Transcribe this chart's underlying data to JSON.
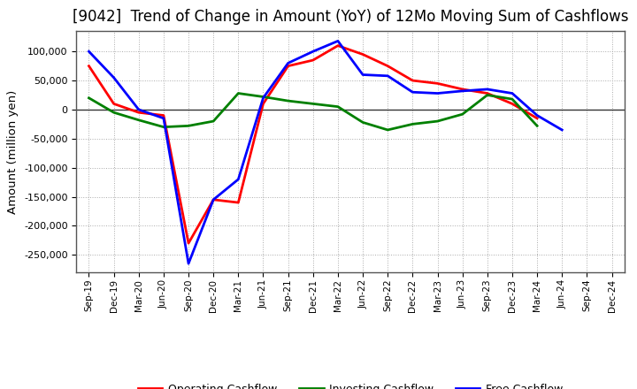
{
  "title": "[9042]  Trend of Change in Amount (YoY) of 12Mo Moving Sum of Cashflows",
  "ylabel": "Amount (million yen)",
  "xlabels": [
    "Sep-19",
    "Dec-19",
    "Mar-20",
    "Jun-20",
    "Sep-20",
    "Dec-20",
    "Mar-21",
    "Jun-21",
    "Sep-21",
    "Dec-21",
    "Mar-22",
    "Jun-22",
    "Sep-22",
    "Dec-22",
    "Mar-23",
    "Jun-23",
    "Sep-23",
    "Dec-23",
    "Mar-24",
    "Jun-24",
    "Sep-24",
    "Dec-24"
  ],
  "operating": [
    75000,
    10000,
    -5000,
    -10000,
    -230000,
    -155000,
    -160000,
    10000,
    75000,
    85000,
    110000,
    95000,
    75000,
    50000,
    45000,
    35000,
    28000,
    10000,
    -15000,
    null,
    null,
    null
  ],
  "investing": [
    20000,
    -5000,
    -18000,
    -30000,
    -28000,
    -20000,
    28000,
    22000,
    15000,
    10000,
    5000,
    -22000,
    -35000,
    -25000,
    -20000,
    -8000,
    25000,
    18000,
    -28000,
    null,
    null,
    null
  ],
  "free": [
    100000,
    55000,
    0,
    -15000,
    -265000,
    -155000,
    -120000,
    20000,
    80000,
    100000,
    118000,
    60000,
    58000,
    30000,
    28000,
    32000,
    35000,
    28000,
    -10000,
    -35000,
    null,
    null
  ],
  "ylim": [
    -280000,
    135000
  ],
  "yticks": [
    -250000,
    -200000,
    -150000,
    -100000,
    -50000,
    0,
    50000,
    100000
  ],
  "operating_color": "#ff0000",
  "investing_color": "#008000",
  "free_color": "#0000ff",
  "bg_color": "#ffffff",
  "grid_color": "#aaaaaa",
  "title_fontsize": 12,
  "label_fontsize": 9.5
}
